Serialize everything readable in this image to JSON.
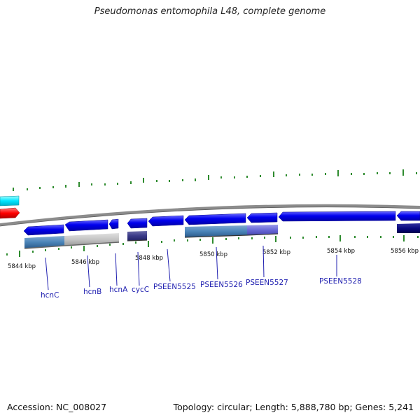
{
  "title": "Pseudomonas entomophila L48, complete genome",
  "footer": {
    "accession": "Accession: NC_008027",
    "summary": "Topology: circular; Length: 5,888,780 bp; Genes: 5,241"
  },
  "colors": {
    "backbone": "#8c8c8c",
    "gene_forward": "#0000ee",
    "tick": "#2e8b2e",
    "label": "#2020b0",
    "cyan_track": "#00e5ff",
    "red_track": "#ff0000"
  },
  "ticks": [
    {
      "label": "5844 kbp"
    },
    {
      "label": "5846 kbp"
    },
    {
      "label": "5848 kbp"
    },
    {
      "label": "5850 kbp"
    },
    {
      "label": "5852 kbp"
    },
    {
      "label": "5854 kbp"
    },
    {
      "label": "5856 kbp"
    }
  ],
  "genes": [
    {
      "name": "hcnC"
    },
    {
      "name": "hcnB"
    },
    {
      "name": "hcnA"
    },
    {
      "name": "cycC"
    },
    {
      "name": "PSEEN5525"
    },
    {
      "name": "PSEEN5526"
    },
    {
      "name": "PSEEN5527"
    },
    {
      "name": "PSEEN5528"
    }
  ]
}
